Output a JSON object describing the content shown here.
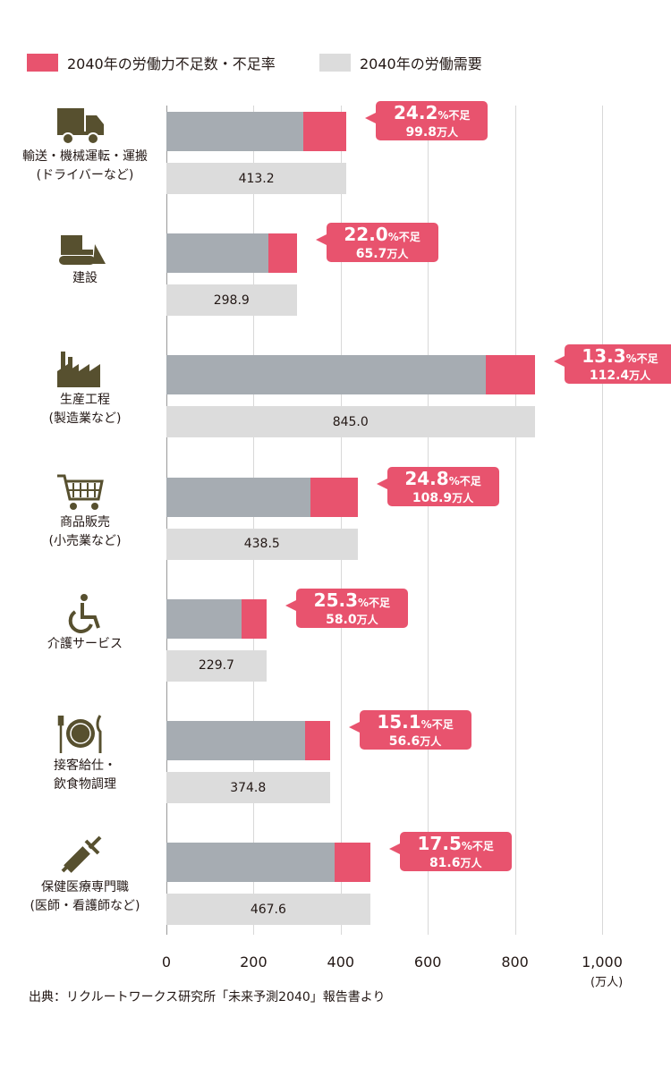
{
  "legend": [
    {
      "label": "2040年の労働力不足数・不足率",
      "color": "#e8536e"
    },
    {
      "label": "2040年の労働需要",
      "color": "#dcdcdc"
    }
  ],
  "chart_data": {
    "type": "bar",
    "orientation": "horizontal",
    "xlim": [
      0,
      1000
    ],
    "x_ticks": [
      "0",
      "200",
      "400",
      "600",
      "800",
      "1,000"
    ],
    "x_unit": "(万人)",
    "grid": true,
    "legend_position": "top",
    "categories": [
      {
        "lines": [
          "輸送・機械運転・運搬",
          "(ドライバーなど)"
        ],
        "icon": "truck-icon",
        "demand": 413.2,
        "shortage": 99.8,
        "rate": 24.2
      },
      {
        "lines": [
          "建設"
        ],
        "icon": "bulldozer-icon",
        "demand": 298.9,
        "shortage": 65.7,
        "rate": 22.0
      },
      {
        "lines": [
          "生産工程",
          "(製造業など)"
        ],
        "icon": "factory-icon",
        "demand": 845.0,
        "shortage": 112.4,
        "rate": 13.3
      },
      {
        "lines": [
          "商品販売",
          "(小売業など)"
        ],
        "icon": "shopping-cart-icon",
        "demand": 438.5,
        "shortage": 108.9,
        "rate": 24.8
      },
      {
        "lines": [
          "介護サービス"
        ],
        "icon": "wheelchair-icon",
        "demand": 229.7,
        "shortage": 58.0,
        "rate": 25.3
      },
      {
        "lines": [
          "接客給仕・",
          "飲食物調理"
        ],
        "icon": "plate-cutlery-icon",
        "demand": 374.8,
        "shortage": 56.6,
        "rate": 15.1
      },
      {
        "lines": [
          "保健医療専門職",
          "(医師・看護師など)"
        ],
        "icon": "syringe-icon",
        "demand": 467.6,
        "shortage": 81.6,
        "rate": 17.5
      }
    ],
    "rate_suffix": "%不足",
    "shortage_suffix": "万人",
    "colors": {
      "shortage": "#e8536e",
      "supply": "#a6acb2",
      "demand": "#dcdcdc"
    }
  },
  "source": "出典：リクルートワークス研究所「未来予測2040」報告書より"
}
